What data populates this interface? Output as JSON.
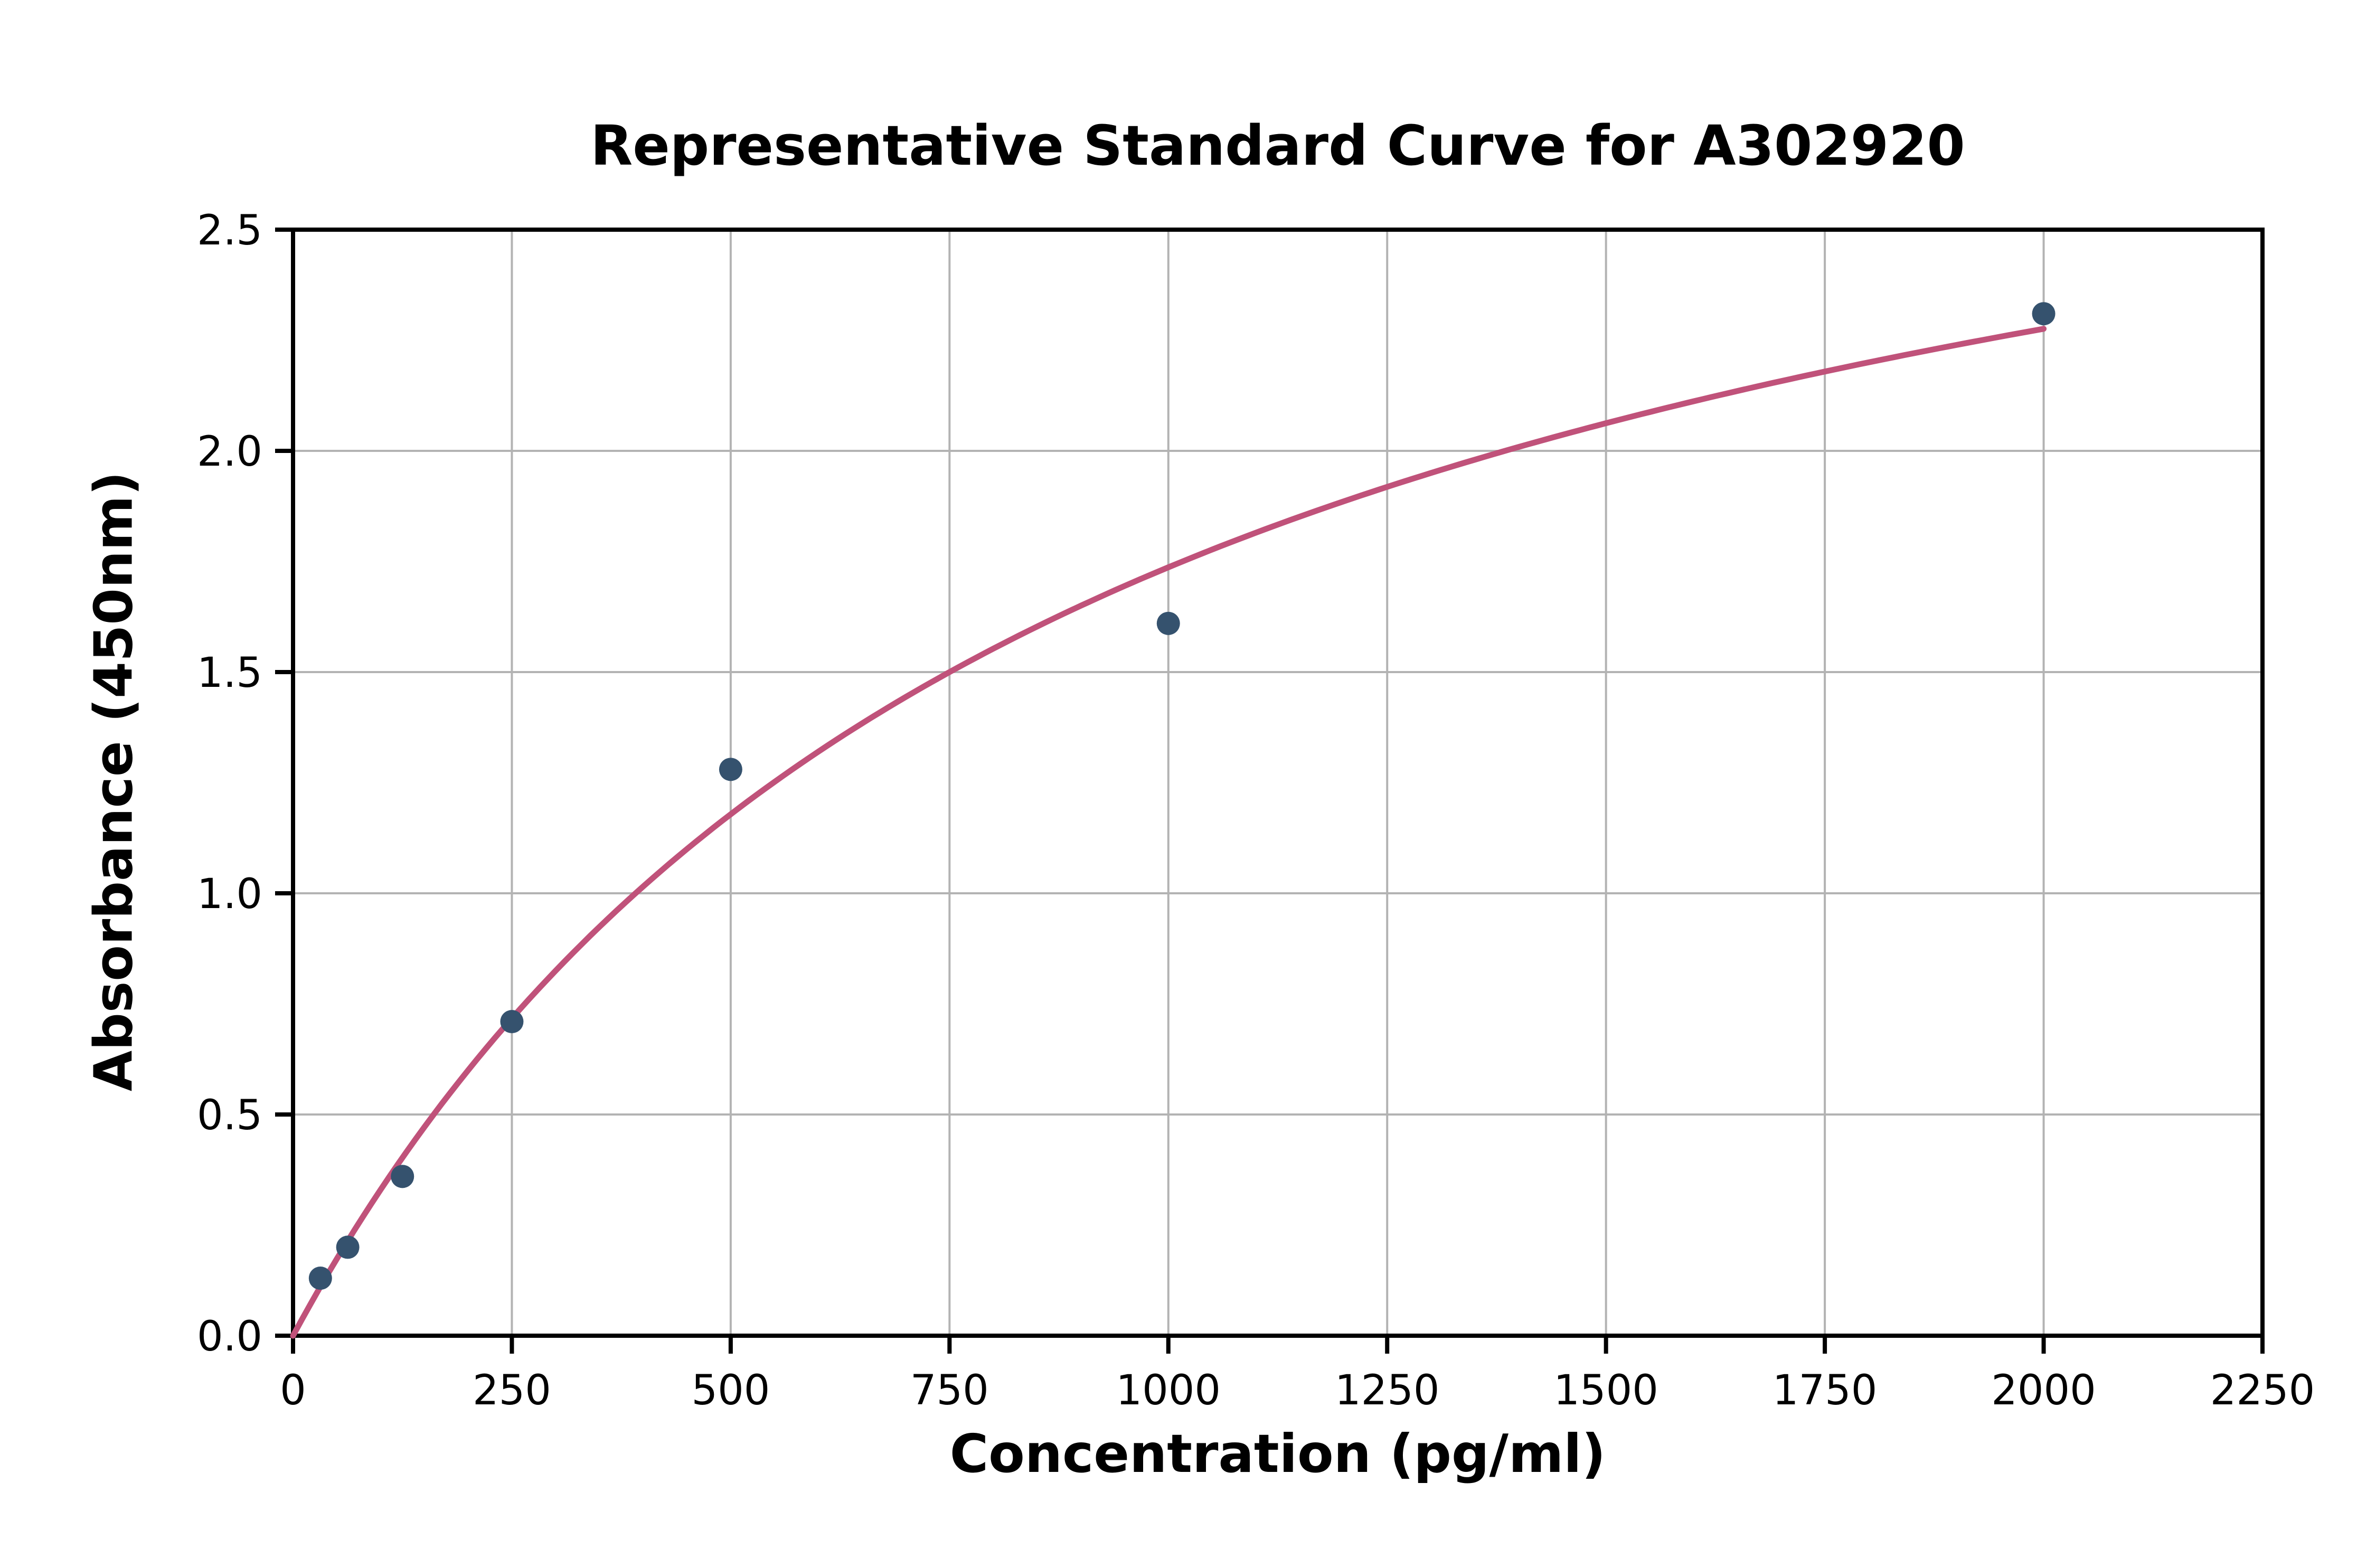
{
  "chart_data": {
    "type": "scatter",
    "title": "Representative Standard Curve for A302920",
    "xlabel": "Concentration (pg/ml)",
    "ylabel": "Absorbance (450nm)",
    "xlim": [
      0,
      2250
    ],
    "ylim": [
      0,
      2.5
    ],
    "x_ticks": [
      0,
      250,
      500,
      750,
      1000,
      1250,
      1500,
      1750,
      2000,
      2250
    ],
    "x_tick_labels": [
      "0",
      "250",
      "500",
      "750",
      "1000",
      "1250",
      "1500",
      "1750",
      "2000",
      "2250"
    ],
    "y_ticks": [
      0,
      0.5,
      1.0,
      1.5,
      2.0,
      2.5
    ],
    "y_tick_labels": [
      "0.0",
      "0.5",
      "1.0",
      "1.5",
      "2.0",
      "2.5"
    ],
    "grid": true,
    "legend_position": "none",
    "points": {
      "x": [
        31.25,
        62.5,
        125,
        250,
        500,
        1000,
        2000
      ],
      "y": [
        0.13,
        0.2,
        0.36,
        0.71,
        1.28,
        1.61,
        2.31
      ]
    },
    "fit": {
      "type": "saturation y = a*x/(b+x)",
      "a": 3.3,
      "b": 900,
      "x_start": 0,
      "x_end": 2000
    },
    "colors": {
      "point": "#35526e",
      "curve": "#c0527a",
      "grid": "#b3b3b3",
      "axis": "#000000",
      "background": "#ffffff"
    }
  }
}
